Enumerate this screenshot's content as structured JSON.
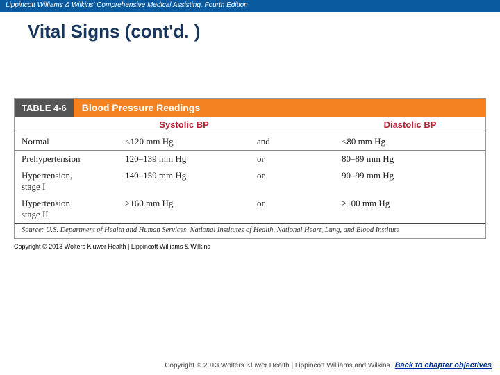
{
  "topbar": {
    "text": "Lippincott Williams & Wilkins' Comprehensive Medical Assisting, Fourth Edition",
    "bg_color": "#0a5aa0",
    "text_color": "#ffffff"
  },
  "slide": {
    "title": "Vital Signs (cont'd. )",
    "title_color": "#17365d"
  },
  "table": {
    "label": "TABLE 4-6",
    "title": "Blood Pressure Readings",
    "label_bg": "#555555",
    "title_bg": "#f58220",
    "header_text_color": "#b22234",
    "columns": [
      "",
      "Systolic BP",
      "",
      "Diastolic BP"
    ],
    "rows": [
      {
        "category": "Normal",
        "systolic": "<120 mm Hg",
        "conj": "and",
        "diastolic": "<80 mm Hg"
      },
      {
        "category": "Prehypertension",
        "systolic": "120–139 mm Hg",
        "conj": "or",
        "diastolic": "80–89 mm Hg"
      },
      {
        "category": "Hypertension,\nstage I",
        "systolic": "140–159 mm Hg",
        "conj": "or",
        "diastolic": "90–99 mm Hg"
      },
      {
        "category": "Hypertension\nstage II",
        "systolic": "≥160 mm Hg",
        "conj": "or",
        "diastolic": "≥100 mm Hg"
      }
    ],
    "source": "Source: U.S. Department of Health and Human Services, National Institutes of Health, National Heart, Lung, and Blood Institute"
  },
  "copyright_small": "Copyright © 2013 Wolters Kluwer Health | Lippincott Williams & Wilkins",
  "footer": {
    "copy": "Copyright © 2013 Wolters Kluwer Health | Lippincott Williams and Wilkins",
    "back_link": "Back to chapter objectives"
  }
}
